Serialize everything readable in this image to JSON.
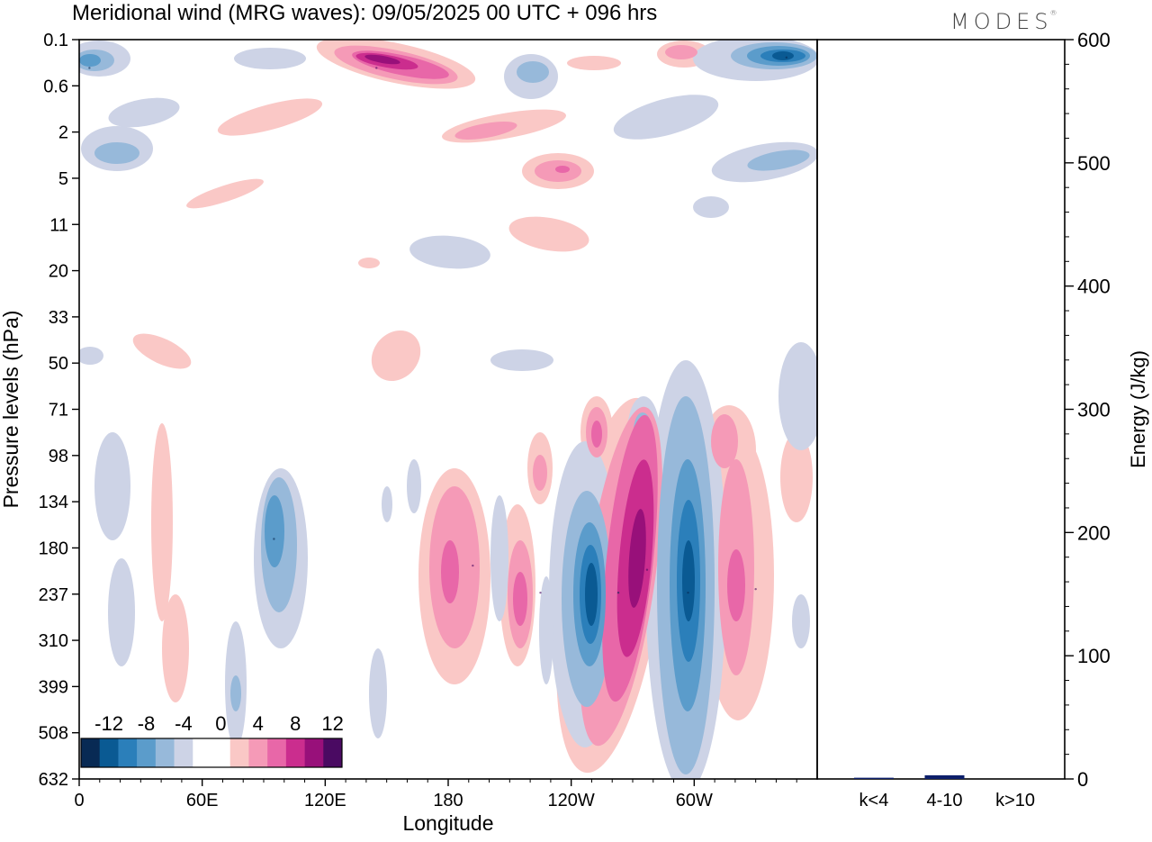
{
  "chart_data": [
    {
      "type": "heatmap",
      "title": "Meridional wind (MRG waves):  09/05/2025  00 UTC  + 096 hrs",
      "xlabel": "Longitude",
      "ylabel": "Pressure levels (hPa)",
      "x_ticks": [
        "0",
        "60E",
        "120E",
        "180",
        "120W",
        "60W"
      ],
      "y_ticks": [
        "0.1",
        "0.6",
        "2",
        "5",
        "11",
        "20",
        "33",
        "50",
        "71",
        "98",
        "134",
        "180",
        "237",
        "310",
        "399",
        "508",
        "632"
      ],
      "colorbar": {
        "labels": [
          "-12",
          "-8",
          "-4",
          "0",
          "4",
          "8",
          "12"
        ],
        "colors": [
          "#082a54",
          "#0a5a93",
          "#2b7fba",
          "#5b9ccb",
          "#97b9da",
          "#cdd3e6",
          "#ffffff",
          "#ffffff",
          "#fac8c6",
          "#f59ab7",
          "#e867a8",
          "#cb2d8e",
          "#98107a",
          "#4a0a62"
        ]
      },
      "features": [
        {
          "lon": 145,
          "p": 0.3,
          "v": 12
        },
        {
          "lon": 5,
          "p": 0.3,
          "v": -9
        },
        {
          "lon": 345,
          "p": 0.2,
          "v": -13
        },
        {
          "lon": 263,
          "p": 235,
          "v": -13
        },
        {
          "lon": 277,
          "p": 205,
          "v": 13
        },
        {
          "lon": 297,
          "p": 235,
          "v": -12
        },
        {
          "lon": 225,
          "p": 235,
          "v": 7
        },
        {
          "lon": 192,
          "p": 200,
          "v": 6
        },
        {
          "lon": 95,
          "p": 170,
          "v": -6
        },
        {
          "lon": 330,
          "p": 230,
          "v": 5
        }
      ]
    },
    {
      "type": "bar",
      "categories": [
        "k<4",
        "4-10",
        "k>10"
      ],
      "values": [
        1,
        3,
        0
      ],
      "ylabel": "Energy (J/kg)",
      "ylim": [
        0,
        600
      ],
      "y_ticks": [
        "0",
        "100",
        "200",
        "300",
        "400",
        "500",
        "600"
      ]
    }
  ],
  "brand": "MODES",
  "brand_mark": "®"
}
